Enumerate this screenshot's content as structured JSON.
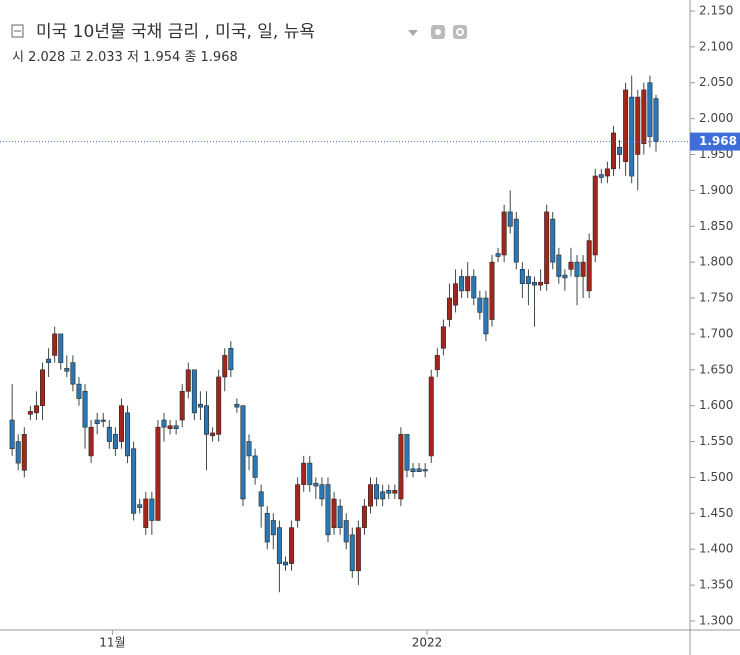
{
  "chart_data": {
    "type": "candlestick",
    "title": "미국 10년물 국채 금리 , 미국, 일, 뉴욕",
    "ohlc_header": {
      "open_label": "시",
      "open": 2.028,
      "high_label": "고",
      "high": 2.033,
      "low_label": "저",
      "low": 1.954,
      "close_label": "종",
      "close": 1.968
    },
    "open": [
      1.58,
      1.55,
      1.51,
      1.588,
      1.59,
      1.6,
      1.665,
      1.67,
      1.7,
      1.652,
      1.66,
      1.63,
      1.62,
      1.53,
      1.58,
      1.58,
      1.57,
      1.56,
      1.55,
      1.59,
      1.54,
      1.462,
      1.43,
      1.47,
      1.44,
      1.58,
      1.568,
      1.572,
      1.58,
      1.62,
      1.65,
      1.602,
      1.6,
      1.558,
      1.56,
      1.64,
      1.68,
      1.602,
      1.6,
      1.55,
      1.53,
      1.48,
      1.45,
      1.44,
      1.43,
      1.382,
      1.38,
      1.44,
      1.49,
      1.52,
      1.492,
      1.49,
      1.49,
      1.43,
      1.46,
      1.44,
      1.42,
      1.37,
      1.43,
      1.46,
      1.49,
      1.48,
      1.482,
      1.478,
      1.47,
      1.56,
      1.512,
      1.512,
      1.511,
      1.53,
      1.65,
      1.68,
      1.72,
      1.74,
      1.78,
      1.76,
      1.78,
      1.75,
      1.75,
      1.72,
      1.812,
      1.81,
      1.87,
      1.86,
      1.79,
      1.78,
      1.772,
      1.768,
      1.77,
      1.86,
      1.81,
      1.782,
      1.79,
      1.8,
      1.78,
      1.76,
      1.81,
      1.922,
      1.92,
      1.93,
      1.96,
      1.94,
      2.03,
      1.95,
      1.965,
      2.05,
      2.028
    ],
    "high": [
      1.63,
      1.56,
      1.57,
      1.6,
      1.62,
      1.66,
      1.68,
      1.71,
      1.7,
      1.67,
      1.67,
      1.64,
      1.63,
      1.58,
      1.59,
      1.59,
      1.58,
      1.57,
      1.61,
      1.6,
      1.55,
      1.47,
      1.48,
      1.48,
      1.58,
      1.59,
      1.58,
      1.58,
      1.63,
      1.66,
      1.65,
      1.62,
      1.62,
      1.57,
      1.65,
      1.68,
      1.69,
      1.61,
      1.6,
      1.56,
      1.54,
      1.49,
      1.46,
      1.45,
      1.44,
      1.39,
      1.44,
      1.5,
      1.53,
      1.53,
      1.5,
      1.5,
      1.5,
      1.48,
      1.47,
      1.45,
      1.43,
      1.44,
      1.47,
      1.5,
      1.5,
      1.49,
      1.49,
      1.49,
      1.57,
      1.56,
      1.52,
      1.52,
      1.52,
      1.65,
      1.68,
      1.72,
      1.77,
      1.79,
      1.79,
      1.8,
      1.79,
      1.76,
      1.76,
      1.81,
      1.82,
      1.88,
      1.9,
      1.87,
      1.8,
      1.79,
      1.78,
      1.79,
      1.88,
      1.87,
      1.82,
      1.79,
      1.82,
      1.81,
      1.81,
      1.84,
      1.93,
      1.93,
      1.94,
      1.99,
      1.97,
      2.05,
      2.06,
      2.04,
      2.05,
      2.06,
      2.033
    ],
    "low": [
      1.53,
      1.51,
      1.5,
      1.58,
      1.58,
      1.58,
      1.64,
      1.66,
      1.65,
      1.64,
      1.62,
      1.6,
      1.54,
      1.52,
      1.56,
      1.57,
      1.54,
      1.53,
      1.54,
      1.52,
      1.44,
      1.45,
      1.42,
      1.42,
      1.44,
      1.55,
      1.56,
      1.56,
      1.57,
      1.61,
      1.58,
      1.58,
      1.51,
      1.55,
      1.55,
      1.62,
      1.64,
      1.59,
      1.46,
      1.51,
      1.49,
      1.43,
      1.4,
      1.4,
      1.34,
      1.37,
      1.37,
      1.43,
      1.48,
      1.48,
      1.47,
      1.46,
      1.41,
      1.42,
      1.42,
      1.4,
      1.36,
      1.35,
      1.42,
      1.45,
      1.46,
      1.46,
      1.47,
      1.47,
      1.46,
      1.5,
      1.5,
      1.51,
      1.5,
      1.52,
      1.64,
      1.67,
      1.71,
      1.73,
      1.75,
      1.75,
      1.74,
      1.72,
      1.69,
      1.71,
      1.8,
      1.8,
      1.84,
      1.79,
      1.75,
      1.74,
      1.71,
      1.76,
      1.76,
      1.79,
      1.77,
      1.76,
      1.78,
      1.74,
      1.75,
      1.75,
      1.8,
      1.91,
      1.91,
      1.92,
      1.93,
      1.92,
      1.91,
      1.9,
      1.95,
      1.96,
      1.954
    ],
    "close": [
      1.54,
      1.52,
      1.56,
      1.592,
      1.6,
      1.65,
      1.66,
      1.7,
      1.66,
      1.648,
      1.63,
      1.61,
      1.57,
      1.57,
      1.575,
      1.578,
      1.55,
      1.54,
      1.6,
      1.53,
      1.45,
      1.458,
      1.47,
      1.44,
      1.57,
      1.57,
      1.572,
      1.568,
      1.62,
      1.65,
      1.59,
      1.598,
      1.56,
      1.562,
      1.64,
      1.67,
      1.65,
      1.598,
      1.47,
      1.53,
      1.5,
      1.46,
      1.41,
      1.42,
      1.38,
      1.378,
      1.43,
      1.49,
      1.52,
      1.49,
      1.488,
      1.47,
      1.42,
      1.47,
      1.43,
      1.41,
      1.37,
      1.43,
      1.46,
      1.49,
      1.47,
      1.47,
      1.478,
      1.482,
      1.56,
      1.51,
      1.508,
      1.508,
      1.509,
      1.64,
      1.67,
      1.71,
      1.75,
      1.77,
      1.76,
      1.78,
      1.75,
      1.73,
      1.7,
      1.8,
      1.808,
      1.87,
      1.85,
      1.8,
      1.77,
      1.77,
      1.768,
      1.772,
      1.87,
      1.8,
      1.78,
      1.778,
      1.8,
      1.78,
      1.8,
      1.83,
      1.92,
      1.918,
      1.93,
      1.98,
      1.95,
      2.04,
      1.92,
      2.03,
      2.04,
      1.975,
      1.968
    ],
    "up_color": "#a3261d",
    "down_color": "#2b77b6",
    "ylim": [
      1.2874,
      2.1653
    ],
    "yticks": [
      {
        "value": 1.3,
        "label": "1.300"
      },
      {
        "value": 1.35,
        "label": "1.350"
      },
      {
        "value": 1.4,
        "label": "1.400"
      },
      {
        "value": 1.45,
        "label": "1.450"
      },
      {
        "value": 1.5,
        "label": "1.500"
      },
      {
        "value": 1.55,
        "label": "1.550"
      },
      {
        "value": 1.6,
        "label": "1.600"
      },
      {
        "value": 1.65,
        "label": "1.650"
      },
      {
        "value": 1.7,
        "label": "1.700"
      },
      {
        "value": 1.75,
        "label": "1.750"
      },
      {
        "value": 1.8,
        "label": "1.800"
      },
      {
        "value": 1.85,
        "label": "1.850"
      },
      {
        "value": 1.9,
        "label": "1.900"
      },
      {
        "value": 1.95,
        "label": "1.950"
      },
      {
        "value": 2.0,
        "label": "2.000"
      },
      {
        "value": 2.05,
        "label": "2.050"
      },
      {
        "value": 2.1,
        "label": "2.100"
      },
      {
        "value": 2.15,
        "label": "2.150"
      }
    ],
    "xlim": [
      -2,
      111.6
    ],
    "xticks": [
      {
        "value": 16.5,
        "label": "11월"
      },
      {
        "value": 68.3,
        "label": "2022"
      }
    ]
  }
}
